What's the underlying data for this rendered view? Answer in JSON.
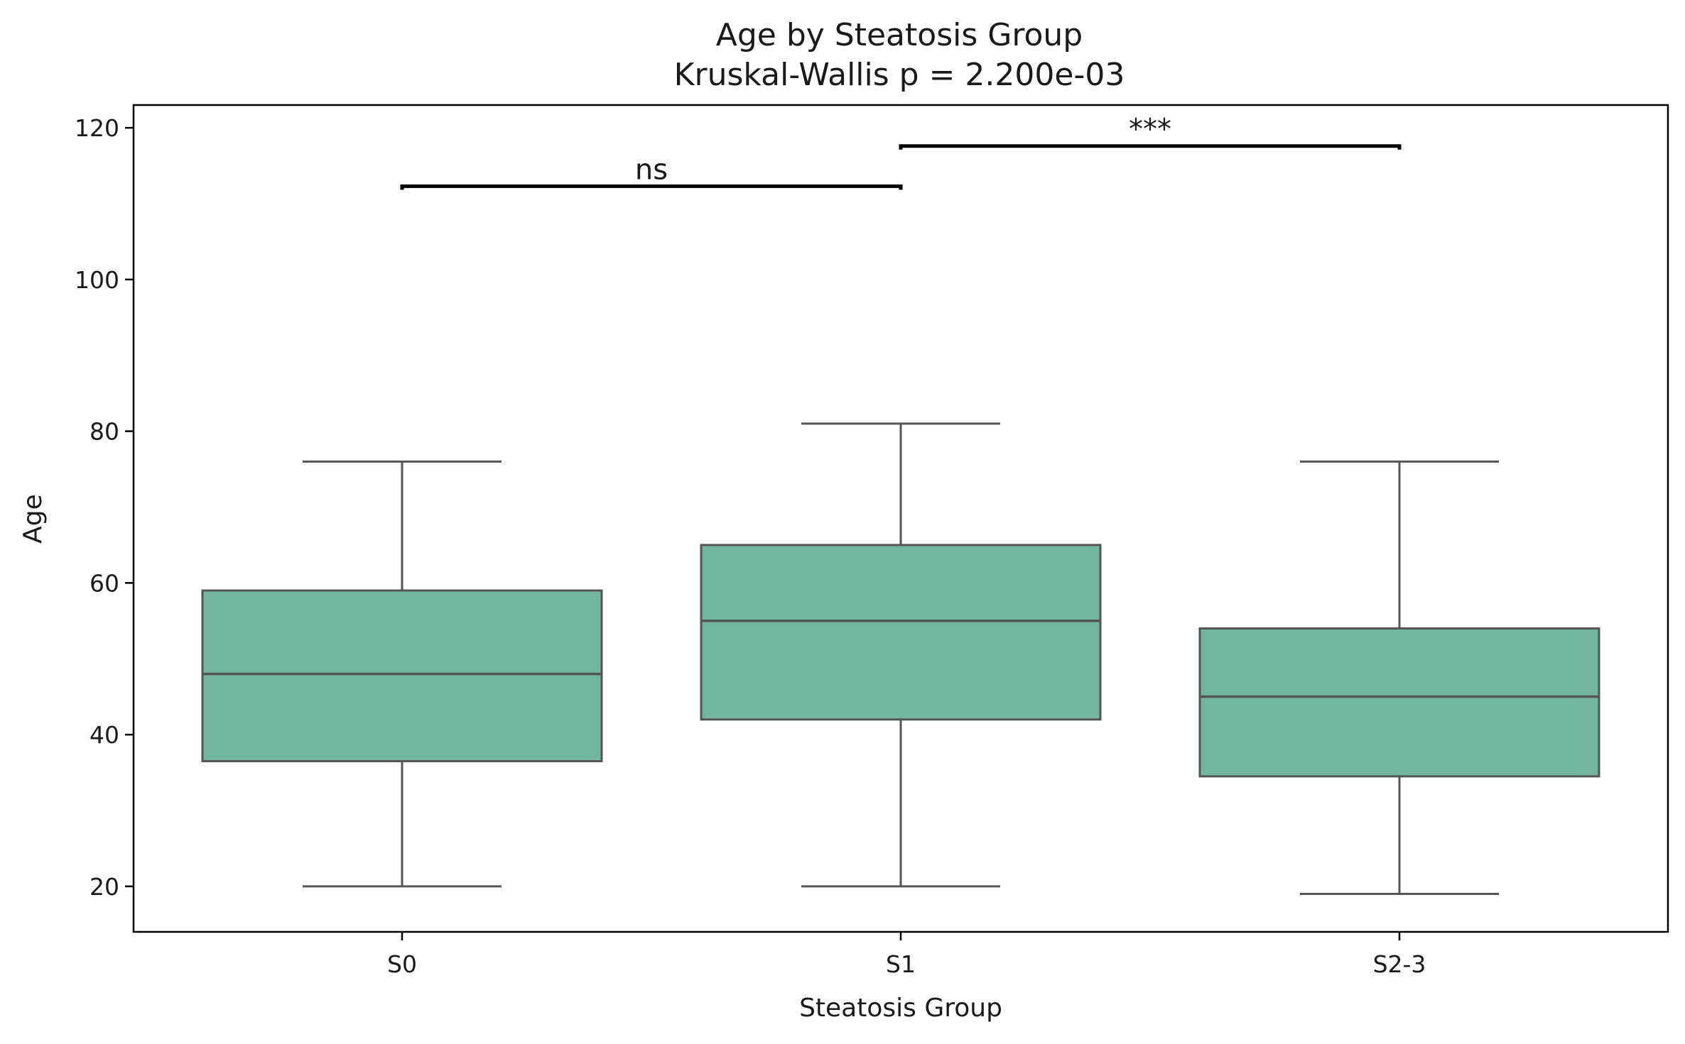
{
  "chart_data": {
    "type": "box",
    "title": "Age by Steatosis Group",
    "subtitle": "Kruskal-Wallis p = 2.200e-03",
    "xlabel": "Steatosis Group",
    "ylabel": "Age",
    "ylim": [
      14,
      123
    ],
    "yticks": [
      20,
      40,
      60,
      80,
      100,
      120
    ],
    "grid": false,
    "colors": {
      "box_fill": "#74b5a0",
      "box_edge": "#555555",
      "annotation": "#000000"
    },
    "categories": [
      "S0",
      "S1",
      "S2-3"
    ],
    "boxes": [
      {
        "label": "S0",
        "whisker_low": 20,
        "q1": 36.5,
        "median": 48,
        "q3": 59,
        "whisker_high": 76
      },
      {
        "label": "S1",
        "whisker_low": 20,
        "q1": 42,
        "median": 55,
        "q3": 65,
        "whisker_high": 81
      },
      {
        "label": "S2-3",
        "whisker_low": 19,
        "q1": 34.5,
        "median": 45,
        "q3": 54,
        "whisker_high": 76
      }
    ],
    "annotations": [
      {
        "from": "S0",
        "to": "S1",
        "y": 112.3,
        "text": "ns"
      },
      {
        "from": "S1",
        "to": "S2-3",
        "y": 117.6,
        "text": "***"
      }
    ]
  }
}
